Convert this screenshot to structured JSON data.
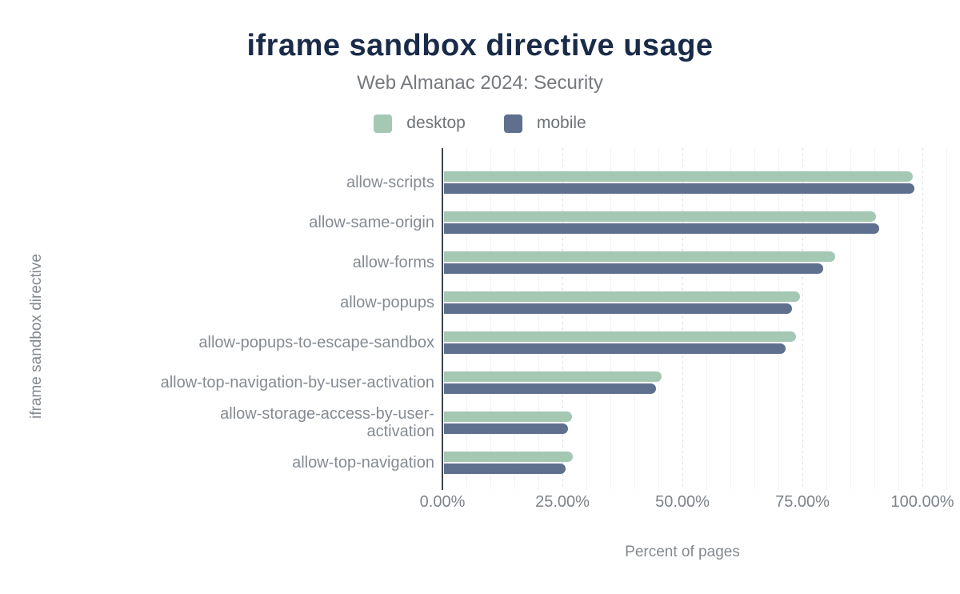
{
  "header": {
    "title": "iframe sandbox directive usage",
    "subtitle": "Web Almanac 2024: Security"
  },
  "legend": [
    {
      "label": "desktop",
      "color": "#a5c8b4"
    },
    {
      "label": "mobile",
      "color": "#5e708e"
    }
  ],
  "colors": {
    "title": "#1a2b49",
    "desktop_bar": "#a5c8b4",
    "mobile_bar": "#5e708e",
    "axis_line": "#3e4650",
    "label_gray": "#858b92"
  },
  "chart_data": {
    "type": "bar",
    "orientation": "horizontal",
    "title": "iframe sandbox directive usage",
    "subtitle": "Web Almanac 2024: Security",
    "xlabel": "Percent of pages",
    "ylabel": "iframe sandbox directive",
    "xlim": [
      0,
      106
    ],
    "grid": {
      "minor_step": 5,
      "major_step": 25
    },
    "legend_position": "top",
    "x_ticks": [
      {
        "value": 0,
        "label": "0.00%"
      },
      {
        "value": 25,
        "label": "25.00%"
      },
      {
        "value": 50,
        "label": "50.00%"
      },
      {
        "value": 75,
        "label": "75.00%"
      },
      {
        "value": 100,
        "label": "100.00%"
      }
    ],
    "categories": [
      "allow-scripts",
      "allow-same-origin",
      "allow-forms",
      "allow-popups",
      "allow-popups-to-escape-sandbox",
      "allow-top-navigation-by-user-activation",
      "allow-storage-access-by-user-activation",
      "allow-top-navigation"
    ],
    "series": [
      {
        "name": "desktop",
        "color": "#a5c8b4",
        "values": [
          98.0,
          90.4,
          81.9,
          74.5,
          73.6,
          45.6,
          27.0,
          27.1
        ]
      },
      {
        "name": "mobile",
        "color": "#5e708e",
        "values": [
          98.4,
          91.0,
          79.4,
          72.9,
          71.5,
          44.5,
          26.1,
          25.6
        ]
      }
    ]
  }
}
